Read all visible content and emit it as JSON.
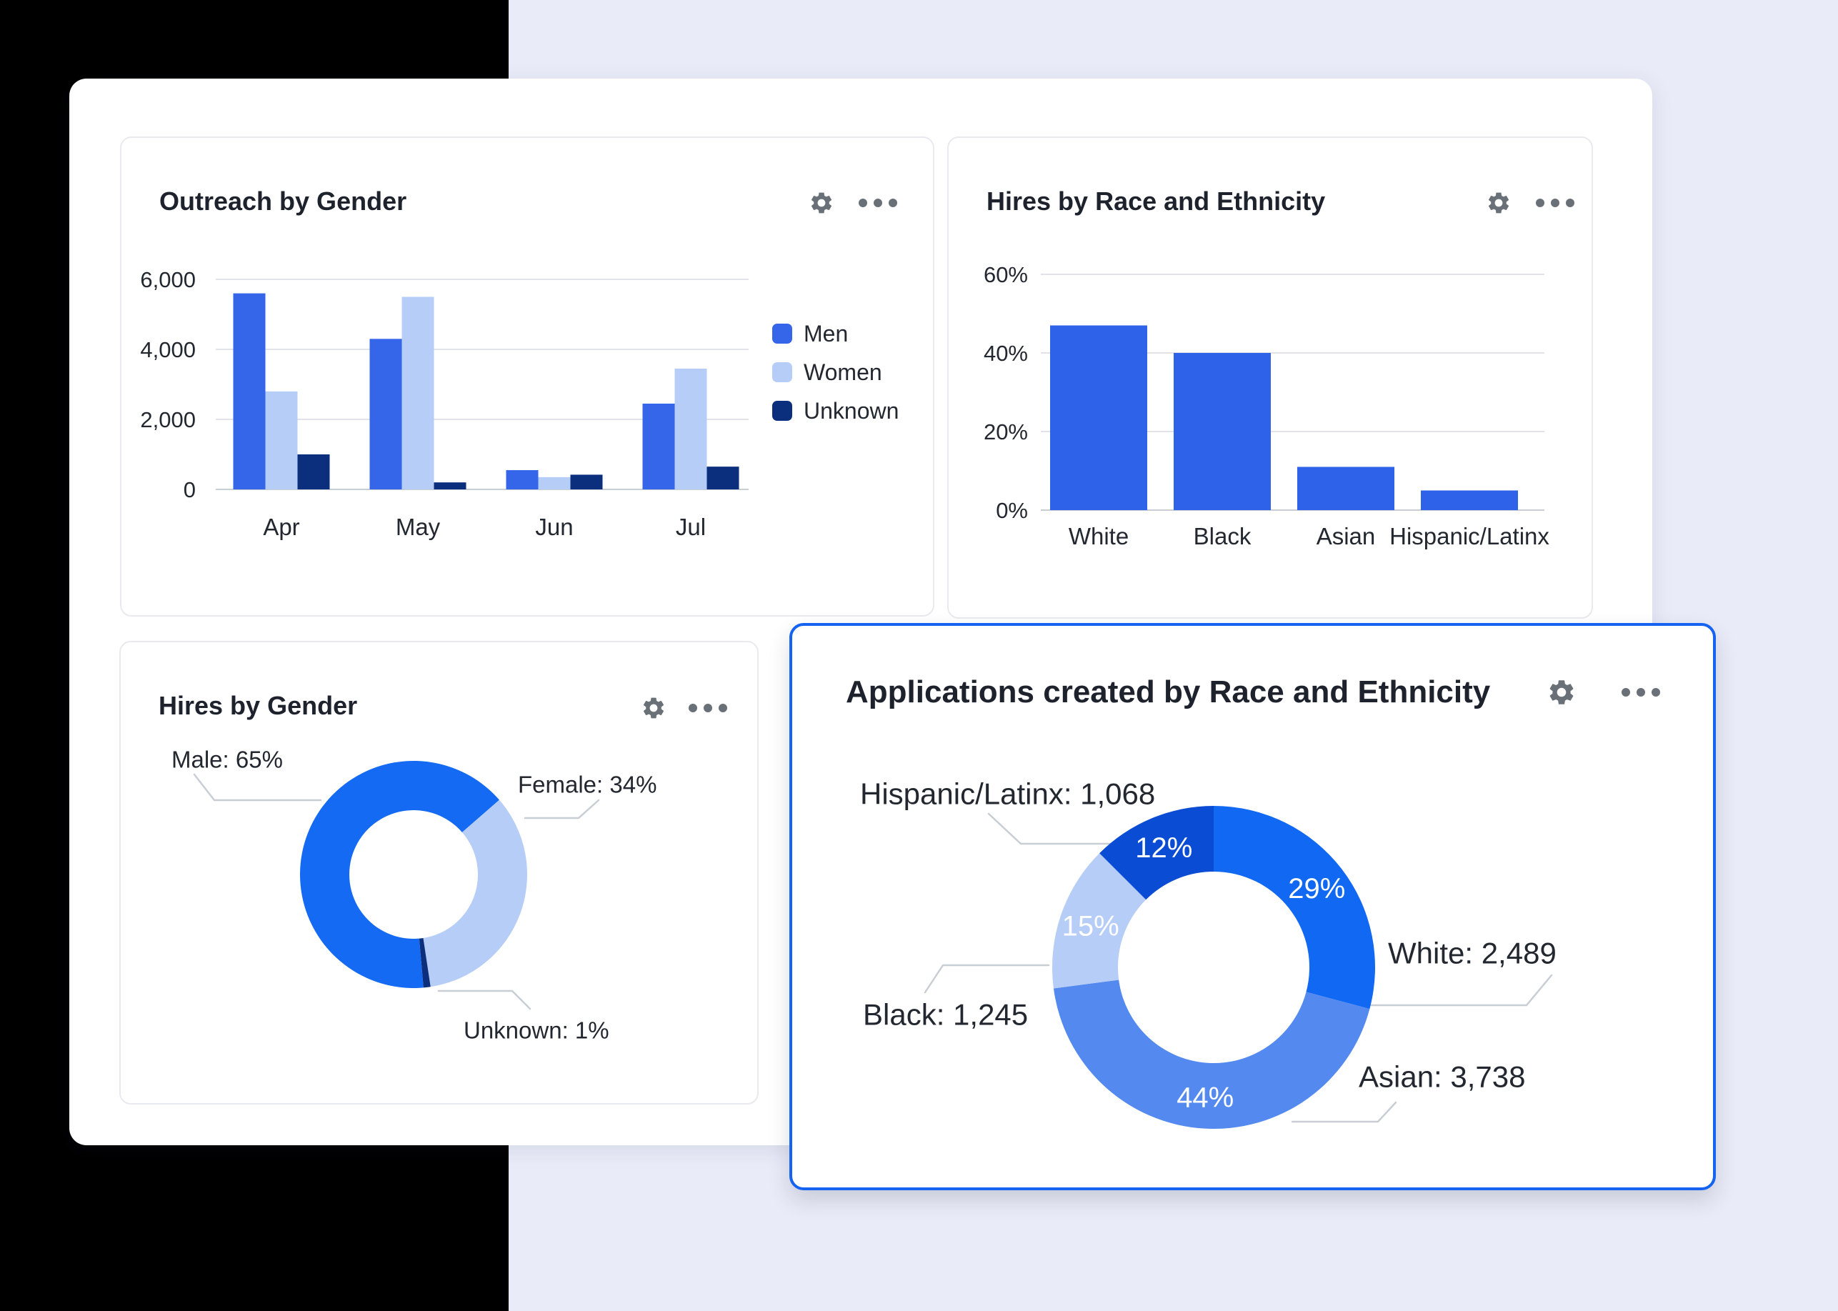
{
  "page": {
    "background": "#e9ebf8",
    "panel_color": "#ffffff",
    "black_block_color": "#000000",
    "accent_border": "#1563f0",
    "icon_color": "#6a7078",
    "title_color": "#1d222c",
    "label_color": "#23272f",
    "gridline_color": "#e1e3e8",
    "axis_line_color": "#c9cdd4",
    "leader_line_color": "#c9cdd4"
  },
  "cards": [
    {
      "title": "Outreach by Gender"
    },
    {
      "title": "Hires by Race and Ethnicity"
    },
    {
      "title": "Hires by Gender"
    },
    {
      "title": "Applications created by Race and Ethnicity"
    }
  ],
  "chart_data": [
    {
      "type": "bar",
      "variant": "grouped",
      "title": "Outreach by Gender",
      "categories": [
        "Apr",
        "May",
        "Jun",
        "Jul"
      ],
      "series": [
        {
          "name": "Men",
          "color": "#3565e8",
          "values": [
            5600,
            4300,
            550,
            2450
          ]
        },
        {
          "name": "Women",
          "color": "#b6cdf8",
          "values": [
            2800,
            5500,
            350,
            3450
          ]
        },
        {
          "name": "Unknown",
          "color": "#0b2f7d",
          "values": [
            1000,
            200,
            420,
            650
          ]
        }
      ],
      "xlabel": "",
      "ylabel": "",
      "ylim": [
        0,
        6000
      ],
      "yticks": [
        0,
        2000,
        4000,
        6000
      ],
      "tick_suffix": "",
      "grid": true,
      "legend_position": "right"
    },
    {
      "type": "bar",
      "title": "Hires by Race and Ethnicity",
      "categories": [
        "White",
        "Black",
        "Asian",
        "Hispanic/Latinx"
      ],
      "values": [
        47,
        40,
        11,
        5
      ],
      "value_unit": "%",
      "color": "#2e62e9",
      "xlabel": "",
      "ylabel": "",
      "ylim": [
        0,
        60
      ],
      "yticks": [
        0,
        20,
        40,
        60
      ],
      "tick_suffix": "%",
      "grid": true,
      "legend_position": "none"
    },
    {
      "type": "pie",
      "subtype": "donut",
      "title": "Hires by Gender",
      "start_angle": 175,
      "slices": [
        {
          "label": "Male",
          "value": 65,
          "color": "#146af2",
          "callout": "Male: 65%"
        },
        {
          "label": "Female",
          "value": 34,
          "color": "#b6cdf8",
          "callout": "Female: 34%"
        },
        {
          "label": "Unknown",
          "value": 1,
          "color": "#0b2f7d",
          "callout": "Unknown: 1%"
        }
      ]
    },
    {
      "type": "pie",
      "subtype": "donut",
      "title": "Applications created by Race and Ethnicity",
      "start_angle": 0,
      "slices": [
        {
          "label": "White",
          "value": 2489,
          "percent_label": "29%",
          "color": "#1168f2",
          "callout": "White: 2,489"
        },
        {
          "label": "Asian",
          "value": 3738,
          "percent_label": "44%",
          "color": "#548af0",
          "callout": "Asian: 3,738"
        },
        {
          "label": "Black",
          "value": 1245,
          "percent_label": "15%",
          "color": "#b6cdf8",
          "callout": "Black: 1,245"
        },
        {
          "label": "Hispanic/Latinx",
          "value": 1068,
          "percent_label": "12%",
          "color": "#0a4cd4",
          "callout": "Hispanic/Latinx: 1,068"
        }
      ]
    }
  ]
}
